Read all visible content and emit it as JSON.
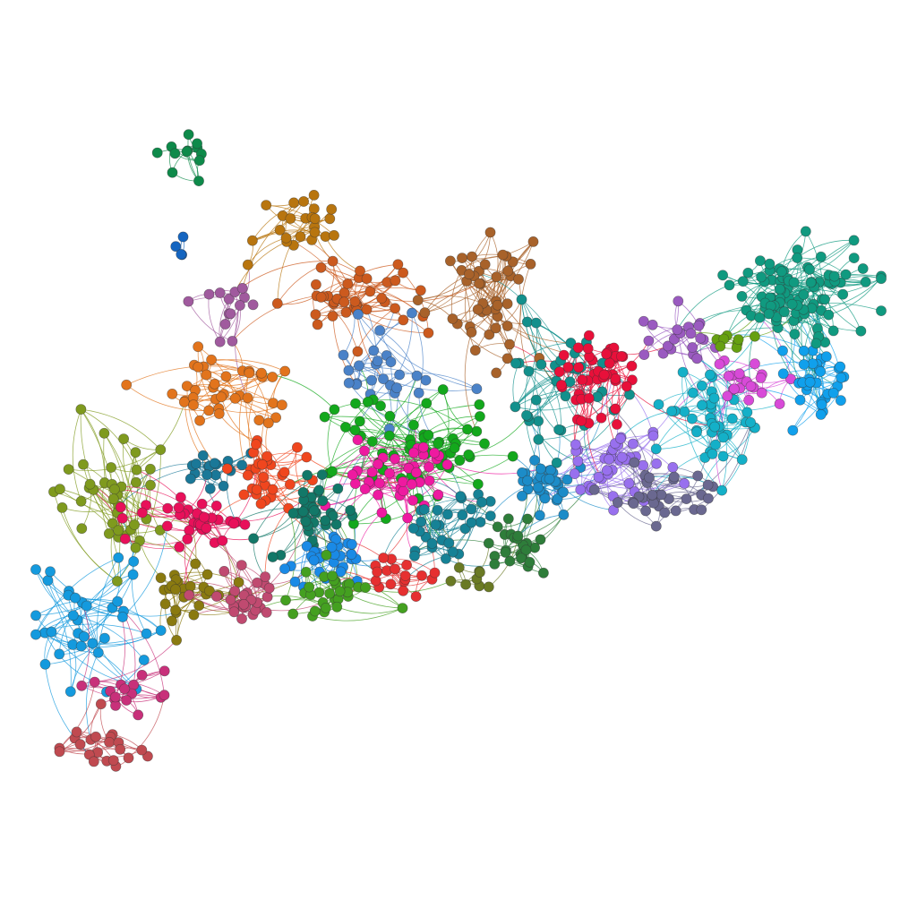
{
  "diagram": {
    "type": "community-network-graph",
    "background": "#ffffff",
    "communities": [
      {
        "id": "green-top",
        "color": "#0e8a4a",
        "nodes": 12
      },
      {
        "id": "blue-small",
        "color": "#1565c0",
        "nodes": 4
      },
      {
        "id": "mauve",
        "color": "#a05a9e",
        "nodes": 14
      },
      {
        "id": "ochre",
        "color": "#b8750f",
        "nodes": 24
      },
      {
        "id": "rust",
        "color": "#cc5a1e",
        "nodes": 40
      },
      {
        "id": "brown",
        "color": "#a8622a",
        "nodes": 46
      },
      {
        "id": "steel-blue",
        "color": "#4a82c8",
        "nodes": 26
      },
      {
        "id": "orange",
        "color": "#e2741c",
        "nodes": 40
      },
      {
        "id": "olive-left",
        "color": "#7f9a1e",
        "nodes": 40
      },
      {
        "id": "teal-blue",
        "color": "#1a7898",
        "nodes": 18
      },
      {
        "id": "red-orange",
        "color": "#f0461e",
        "nodes": 30
      },
      {
        "id": "crimson-pink",
        "color": "#e8105a",
        "nodes": 36
      },
      {
        "id": "bright-green",
        "color": "#13a81c",
        "nodes": 60
      },
      {
        "id": "magenta",
        "color": "#ee1aa0",
        "nodes": 40
      },
      {
        "id": "dark-teal",
        "color": "#127868",
        "nodes": 36
      },
      {
        "id": "mid-blue",
        "color": "#1a8ae6",
        "nodes": 30
      },
      {
        "id": "olive-dark",
        "color": "#8a7a10",
        "nodes": 28
      },
      {
        "id": "dusty-rose",
        "color": "#c04a70",
        "nodes": 28
      },
      {
        "id": "lime-green",
        "color": "#44a020",
        "nodes": 30
      },
      {
        "id": "red",
        "color": "#e63030",
        "nodes": 18
      },
      {
        "id": "petrol",
        "color": "#168296",
        "nodes": 30
      },
      {
        "id": "forest",
        "color": "#2e7d3a",
        "nodes": 26
      },
      {
        "id": "olive-green",
        "color": "#6a7a24",
        "nodes": 8
      },
      {
        "id": "cerulean",
        "color": "#1c8cc8",
        "nodes": 30
      },
      {
        "id": "teal-mid",
        "color": "#12908c",
        "nodes": 34
      },
      {
        "id": "cherry",
        "color": "#e8103a",
        "nodes": 44
      },
      {
        "id": "violet",
        "color": "#9870ee",
        "nodes": 42
      },
      {
        "id": "slate-purple",
        "color": "#6a6890",
        "nodes": 32
      },
      {
        "id": "purple",
        "color": "#9a5ac0",
        "nodes": 22
      },
      {
        "id": "cyan",
        "color": "#14b0c8",
        "nodes": 40
      },
      {
        "id": "orchid",
        "color": "#d84ad8",
        "nodes": 20
      },
      {
        "id": "sky",
        "color": "#10a0ec",
        "nodes": 34
      },
      {
        "id": "sea-green",
        "color": "#109a80",
        "nodes": 90
      },
      {
        "id": "lime-small",
        "color": "#66a010",
        "nodes": 8
      },
      {
        "id": "sky-left",
        "color": "#149ade",
        "nodes": 36
      },
      {
        "id": "raspberry",
        "color": "#c8307a",
        "nodes": 16
      },
      {
        "id": "brick",
        "color": "#c04a50",
        "nodes": 22
      }
    ]
  }
}
